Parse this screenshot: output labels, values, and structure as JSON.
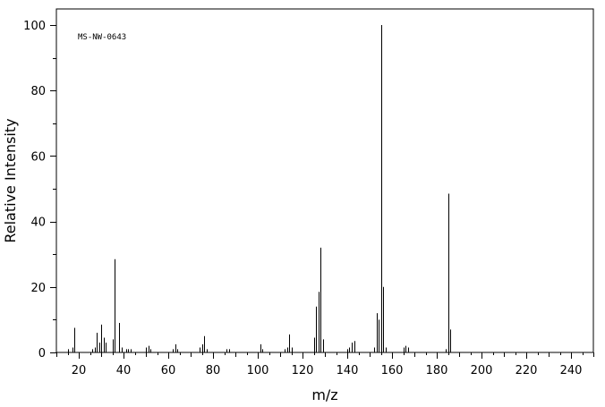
{
  "chart_data": {
    "type": "bar",
    "title": "",
    "annotation": "MS-NW-0643",
    "xlabel": "m/z",
    "ylabel": "Relative Intensity",
    "xlim": [
      10,
      250
    ],
    "ylim": [
      0,
      100
    ],
    "xticks": [
      20,
      40,
      60,
      80,
      100,
      120,
      140,
      160,
      180,
      200,
      220,
      240
    ],
    "yticks": [
      0,
      20,
      40,
      60,
      80,
      100
    ],
    "grid": false,
    "legend": "none",
    "peaks": [
      [
        15,
        1.0
      ],
      [
        17,
        1.5
      ],
      [
        18,
        7.5
      ],
      [
        26,
        1.0
      ],
      [
        27,
        1.5
      ],
      [
        28,
        6.0
      ],
      [
        29,
        3.0
      ],
      [
        30,
        8.5
      ],
      [
        31,
        4.5
      ],
      [
        32,
        3.0
      ],
      [
        35,
        4.0
      ],
      [
        36,
        28.5
      ],
      [
        38,
        9.0
      ],
      [
        39,
        1.5
      ],
      [
        41,
        1.0
      ],
      [
        42,
        1.0
      ],
      [
        43,
        1.0
      ],
      [
        50,
        1.5
      ],
      [
        51,
        2.0
      ],
      [
        52,
        1.0
      ],
      [
        62,
        1.0
      ],
      [
        63,
        2.5
      ],
      [
        64,
        1.0
      ],
      [
        74,
        1.5
      ],
      [
        75,
        2.5
      ],
      [
        76,
        5.0
      ],
      [
        77,
        1.0
      ],
      [
        86,
        1.0
      ],
      [
        87,
        1.0
      ],
      [
        101,
        2.5
      ],
      [
        102,
        1.0
      ],
      [
        112,
        1.0
      ],
      [
        113,
        1.5
      ],
      [
        114,
        5.5
      ],
      [
        115,
        1.5
      ],
      [
        125,
        4.5
      ],
      [
        126,
        14.0
      ],
      [
        127,
        18.5
      ],
      [
        128,
        32.0
      ],
      [
        129,
        4.0
      ],
      [
        140,
        1.0
      ],
      [
        141,
        1.5
      ],
      [
        142,
        3.0
      ],
      [
        143,
        3.5
      ],
      [
        152,
        1.5
      ],
      [
        153,
        12.0
      ],
      [
        154,
        10.0
      ],
      [
        155,
        100
      ],
      [
        156,
        20.0
      ],
      [
        157,
        1.5
      ],
      [
        165,
        1.5
      ],
      [
        166,
        2.0
      ],
      [
        167,
        1.5
      ],
      [
        184,
        1.0
      ],
      [
        185,
        48.5
      ],
      [
        186,
        7.0
      ]
    ]
  }
}
